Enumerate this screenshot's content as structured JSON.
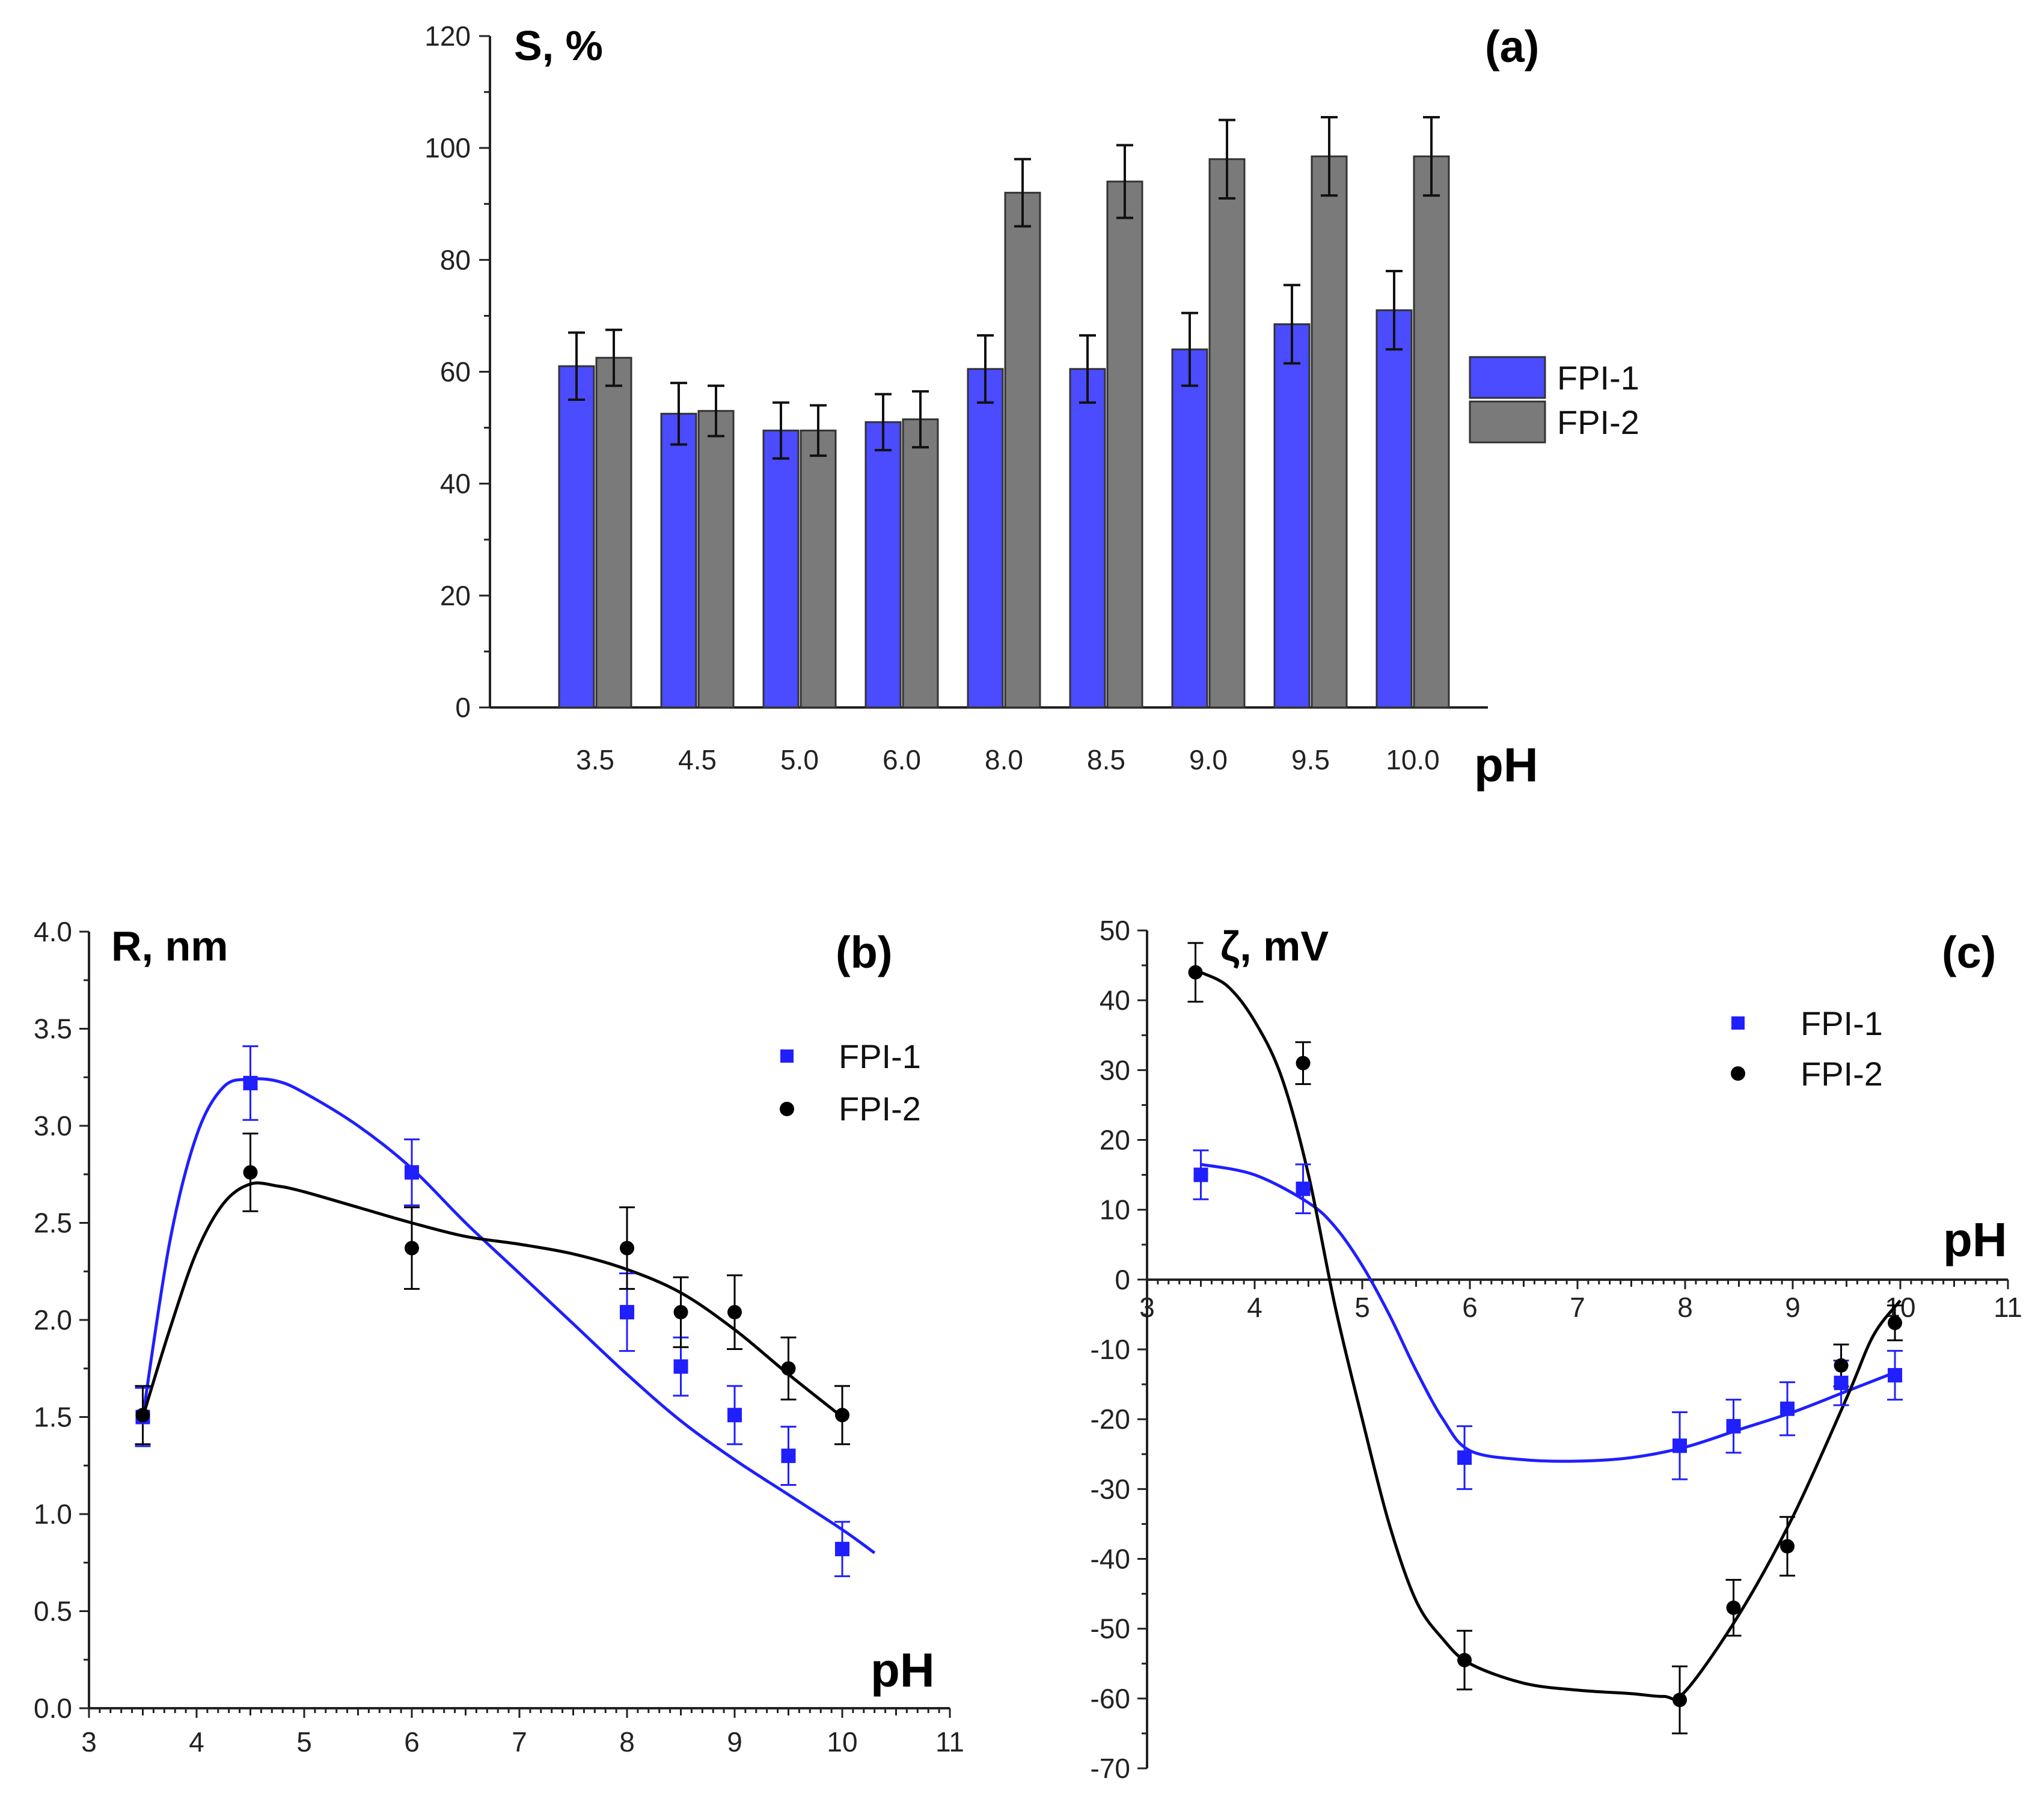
{
  "colors": {
    "fpi1": "#4b4bff",
    "fpi2": "#7a7a7a",
    "fpi1_line": "#1f1fff",
    "fpi2_line": "#000000"
  },
  "chart_data": [
    {
      "id": "a",
      "type": "bar",
      "panel_label": "(a)",
      "ylabel": "S, %",
      "xlabel": "pH",
      "ylim": [
        0,
        120
      ],
      "yticks": [
        0,
        20,
        40,
        60,
        80,
        100,
        120
      ],
      "categories": [
        "3.5",
        "4.5",
        "5.0",
        "6.0",
        "8.0",
        "8.5",
        "9.0",
        "9.5",
        "10.0"
      ],
      "legend_position": "right",
      "series": [
        {
          "name": "FPI-1",
          "values": [
            61,
            52.5,
            49.5,
            51,
            60.5,
            60.5,
            64,
            68.5,
            71
          ],
          "errors": [
            6,
            5.5,
            5,
            5,
            6,
            6,
            6.5,
            7,
            7
          ]
        },
        {
          "name": "FPI-2",
          "values": [
            62.5,
            53,
            49.5,
            51.5,
            92,
            94,
            98,
            98.5,
            98.5
          ],
          "errors": [
            5,
            4.5,
            4.5,
            5,
            6,
            6.5,
            7,
            7,
            7
          ]
        }
      ]
    },
    {
      "id": "b",
      "type": "scatter",
      "panel_label": "(b)",
      "ylabel": "R, nm",
      "xlabel": "pH",
      "xlim": [
        3,
        11
      ],
      "ylim": [
        0,
        4
      ],
      "xticks": [
        3,
        4,
        5,
        6,
        7,
        8,
        9,
        10,
        11
      ],
      "yticks": [
        0.0,
        0.5,
        1.0,
        1.5,
        2.0,
        2.5,
        3.0,
        3.5,
        4.0
      ],
      "legend_position": "top-right",
      "series": [
        {
          "name": "FPI-1",
          "x": [
            3.5,
            4.5,
            6,
            8,
            8.5,
            9,
            9.5,
            10
          ],
          "y": [
            1.5,
            3.22,
            2.76,
            2.04,
            1.76,
            1.51,
            1.3,
            0.82
          ],
          "errors": [
            0.15,
            0.19,
            0.17,
            0.2,
            0.15,
            0.15,
            0.15,
            0.14
          ],
          "fit_x": [
            3.5,
            3.75,
            4.0,
            4.25,
            4.5,
            4.75,
            5.0,
            5.5,
            6.0,
            6.5,
            7.0,
            7.5,
            8.0,
            8.5,
            9.0,
            9.5,
            10.0,
            10.3
          ],
          "fit_y": [
            1.5,
            2.4,
            2.95,
            3.2,
            3.24,
            3.23,
            3.17,
            3.0,
            2.78,
            2.5,
            2.24,
            1.98,
            1.72,
            1.48,
            1.28,
            1.1,
            0.92,
            0.8
          ]
        },
        {
          "name": "FPI-2",
          "x": [
            3.5,
            4.5,
            6,
            8,
            8.5,
            9,
            9.5,
            10
          ],
          "y": [
            1.51,
            2.76,
            2.37,
            2.37,
            2.04,
            2.04,
            1.75,
            1.51
          ],
          "errors": [
            0.15,
            0.2,
            0.21,
            0.21,
            0.18,
            0.19,
            0.16,
            0.15
          ],
          "fit_x": [
            3.5,
            3.75,
            4.0,
            4.25,
            4.5,
            4.75,
            5.0,
            5.5,
            6.0,
            6.5,
            7.0,
            7.5,
            8.0,
            8.5,
            9.0,
            9.5,
            10.0
          ],
          "fit_y": [
            1.5,
            1.95,
            2.35,
            2.6,
            2.7,
            2.69,
            2.66,
            2.58,
            2.5,
            2.43,
            2.39,
            2.34,
            2.26,
            2.14,
            1.95,
            1.72,
            1.5
          ]
        }
      ]
    },
    {
      "id": "c",
      "type": "scatter",
      "panel_label": "(c)",
      "ylabel": "ζ, mV",
      "xlabel": "pH",
      "xlim": [
        3,
        11
      ],
      "ylim": [
        -70,
        50
      ],
      "xticks": [
        3,
        4,
        5,
        6,
        7,
        8,
        9,
        10,
        11
      ],
      "yticks": [
        -70,
        -60,
        -50,
        -40,
        -30,
        -20,
        -10,
        0,
        10,
        20,
        30,
        40,
        50
      ],
      "legend_position": "top-right",
      "series": [
        {
          "name": "FPI-1",
          "x": [
            3.5,
            4.45,
            5.95,
            7.95,
            8.45,
            8.95,
            9.45,
            9.95
          ],
          "y": [
            15,
            13,
            -25.5,
            -23.8,
            -21,
            -18.5,
            -14.8,
            -13.7
          ],
          "errors": [
            3.5,
            3.5,
            4.5,
            4.8,
            3.8,
            3.8,
            3.2,
            3.5
          ],
          "fit_x": [
            3.5,
            4.0,
            4.5,
            4.75,
            5.0,
            5.25,
            5.5,
            5.75,
            6.0,
            6.5,
            7.0,
            7.5,
            8.0,
            8.5,
            9.0,
            9.5,
            10.0
          ],
          "fit_y": [
            16.5,
            15,
            11,
            7.5,
            2,
            -5,
            -13,
            -20,
            -24.5,
            -25.8,
            -26,
            -25.5,
            -24,
            -21.5,
            -19,
            -16,
            -13
          ]
        },
        {
          "name": "FPI-2",
          "x": [
            3.45,
            4.45,
            5.95,
            7.95,
            8.45,
            8.95,
            9.45,
            9.95
          ],
          "y": [
            44,
            31,
            -54.5,
            -60.2,
            -47,
            -38.2,
            -12.3,
            -6.2
          ],
          "errors": [
            4.2,
            3,
            4.2,
            4.8,
            4,
            4.2,
            3,
            2.5
          ],
          "fit_x": [
            3.5,
            3.75,
            4.0,
            4.25,
            4.5,
            4.75,
            5.0,
            5.25,
            5.5,
            5.75,
            6.0,
            6.5,
            7.0,
            7.5,
            7.8,
            8.0,
            8.5,
            9.0,
            9.5,
            9.75,
            10.0
          ],
          "fit_y": [
            44,
            42,
            37,
            29,
            15,
            -4,
            -20,
            -35,
            -46,
            -51.5,
            -55,
            -57.8,
            -58.8,
            -59.3,
            -59.7,
            -59,
            -48,
            -34,
            -17,
            -8,
            -3
          ]
        }
      ]
    }
  ]
}
